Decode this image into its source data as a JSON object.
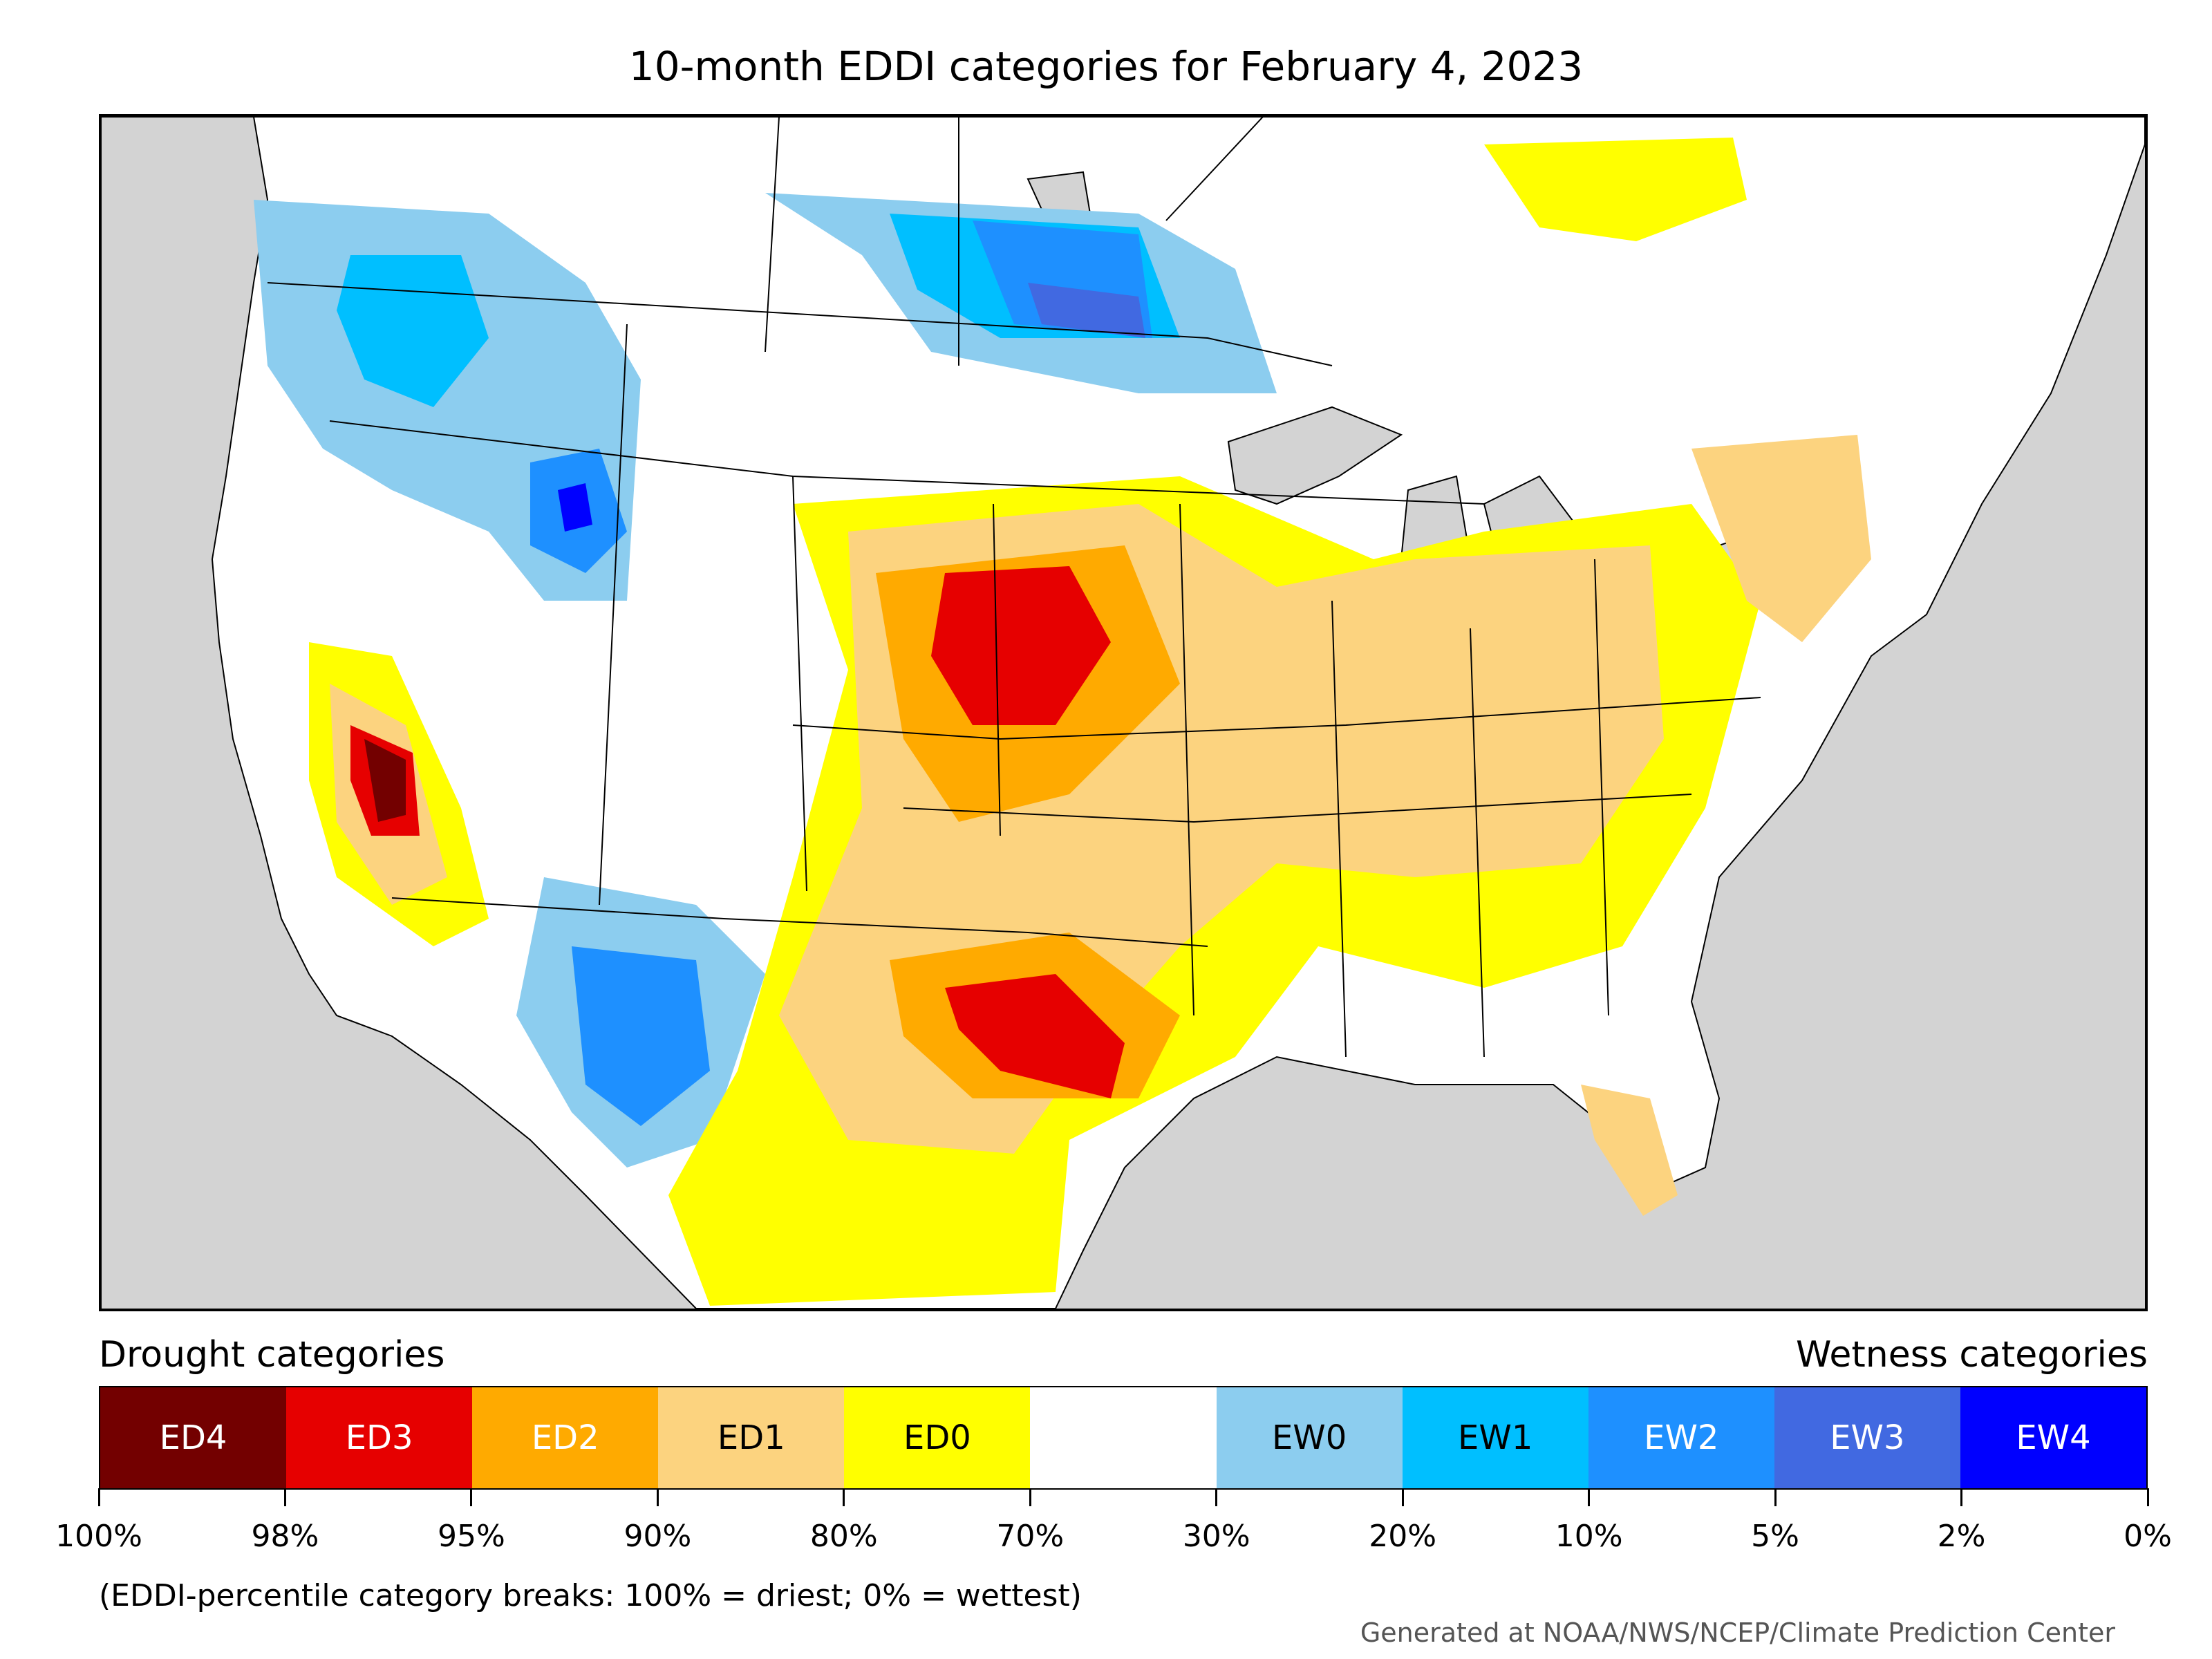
{
  "title": "10-month EDDI categories for February 4, 2023",
  "legend": {
    "drought_heading": "Drought categories",
    "wetness_heading": "Wetness categories",
    "categories": [
      {
        "label": "ED4",
        "color": "#730000",
        "text_color": "#ffffff"
      },
      {
        "label": "ED3",
        "color": "#e60000",
        "text_color": "#ffffff"
      },
      {
        "label": "ED2",
        "color": "#ffaa00",
        "text_color": "#ffffff"
      },
      {
        "label": "ED1",
        "color": "#fcd37f",
        "text_color": "#000000"
      },
      {
        "label": "ED0",
        "color": "#ffff00",
        "text_color": "#000000"
      },
      {
        "label": "",
        "color": "#ffffff",
        "text_color": "#000000"
      },
      {
        "label": "EW0",
        "color": "#8ccdef",
        "text_color": "#000000"
      },
      {
        "label": "EW1",
        "color": "#00bfff",
        "text_color": "#000000"
      },
      {
        "label": "EW2",
        "color": "#1e90ff",
        "text_color": "#ffffff"
      },
      {
        "label": "EW3",
        "color": "#4169e1",
        "text_color": "#ffffff"
      },
      {
        "label": "EW4",
        "color": "#0000ff",
        "text_color": "#ffffff"
      }
    ],
    "ticks": [
      "100%",
      "98%",
      "95%",
      "90%",
      "80%",
      "70%",
      "30%",
      "20%",
      "10%",
      "5%",
      "2%",
      "0%"
    ]
  },
  "note": "(EDDI-percentile category breaks: 100% = driest; 0% = wettest)",
  "credit": "Generated at NOAA/NWS/NCEP/Climate Prediction Center"
}
